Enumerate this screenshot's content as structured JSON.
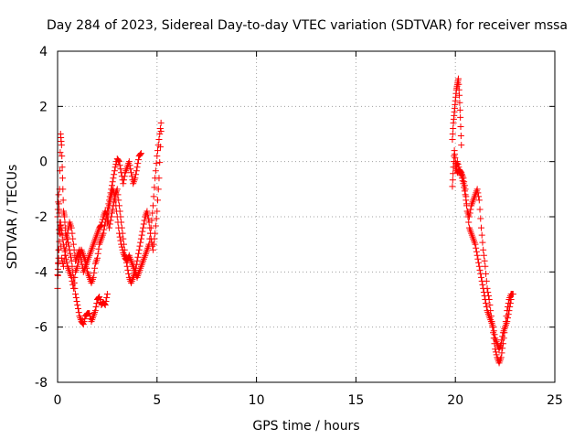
{
  "chart_data": {
    "type": "scatter",
    "title": "Day 284 of 2023, Sidereal Day-to-day VTEC variation (SDTVAR) for receiver mssa",
    "xlabel": "GPS time / hours",
    "ylabel": "SDTVAR / TECUs",
    "xlim": [
      0,
      25
    ],
    "ylim": [
      -8,
      4
    ],
    "x_ticks": [
      0,
      5,
      10,
      15,
      20,
      25
    ],
    "x_tick_labels": [
      "0",
      "5",
      "10",
      "15",
      "20",
      "25"
    ],
    "y_ticks": [
      -8,
      -6,
      -4,
      -2,
      0,
      2,
      4
    ],
    "y_tick_labels": [
      "-8",
      "-6",
      "-4",
      "-2",
      "0",
      "2",
      "4"
    ],
    "grid": true,
    "marker": "plus",
    "color": "#ff0000",
    "series": [
      {
        "name": "SDTVAR",
        "traces": [
          {
            "x": [
              0.0,
              0.05,
              0.1,
              0.15,
              0.2,
              0.25,
              0.3,
              0.35,
              0.4,
              0.5,
              0.6,
              0.7,
              0.8,
              0.9,
              1.0,
              1.1,
              1.2,
              1.3,
              1.4,
              1.5,
              1.6,
              1.7,
              1.8,
              1.9,
              2.0,
              2.1,
              2.2,
              2.3,
              2.4,
              2.5
            ],
            "y": [
              -4.6,
              -3.2,
              -1.0,
              1.0,
              0.6,
              -0.6,
              -1.8,
              -2.0,
              -2.6,
              -2.8,
              -3.2,
              -3.6,
              -4.2,
              -4.8,
              -5.2,
              -5.6,
              -5.8,
              -5.9,
              -5.6,
              -5.5,
              -5.5,
              -5.8,
              -5.6,
              -5.4,
              -5.0,
              -4.9,
              -5.2,
              -5.1,
              -5.2,
              -4.8
            ]
          },
          {
            "x": [
              0.0,
              0.05,
              0.1,
              0.15,
              0.2,
              0.3,
              0.4,
              0.5,
              0.6,
              0.7,
              0.8,
              0.9,
              1.0,
              1.1,
              1.2,
              1.3,
              1.4,
              1.5,
              1.6,
              1.7,
              1.8,
              1.9,
              2.0,
              2.1,
              2.2,
              2.3,
              2.4,
              2.5,
              2.6,
              2.7,
              2.8,
              2.9,
              3.0,
              3.1,
              3.2,
              3.3,
              3.4,
              3.5,
              3.6,
              3.7,
              3.8,
              3.9,
              4.0,
              4.1,
              4.2
            ],
            "y": [
              -4.1,
              -3.5,
              -2.6,
              -2.2,
              -2.5,
              -3.0,
              -3.4,
              -3.8,
              -4.0,
              -4.2,
              -4.6,
              -4.0,
              -3.8,
              -3.4,
              -3.2,
              -3.4,
              -3.6,
              -4.0,
              -4.2,
              -4.4,
              -4.2,
              -3.7,
              -3.5,
              -3.0,
              -2.8,
              -2.6,
              -2.2,
              -1.8,
              -1.4,
              -1.0,
              -0.6,
              -0.2,
              0.1,
              0.0,
              -0.4,
              -0.8,
              -0.4,
              -0.2,
              0.0,
              -0.4,
              -0.8,
              -0.6,
              -0.2,
              0.2,
              0.3
            ]
          },
          {
            "x": [
              0.0,
              0.05,
              0.1,
              0.2,
              0.3,
              0.4,
              0.5,
              0.6,
              0.7,
              0.8,
              0.9,
              1.0,
              1.1,
              1.2,
              1.3,
              1.4,
              1.5,
              1.6,
              1.7,
              1.8,
              1.9,
              2.0,
              2.1,
              2.2,
              2.3,
              2.4,
              2.5,
              2.6,
              2.7,
              2.8,
              2.9,
              3.0,
              3.1,
              3.2,
              3.3,
              3.4,
              3.5,
              3.6,
              3.7,
              3.8,
              3.9,
              4.0,
              4.1,
              4.2,
              4.3,
              4.4,
              4.5,
              4.6,
              4.7,
              4.8,
              4.9,
              5.0,
              5.1,
              5.2
            ],
            "y": [
              -2.0,
              -1.2,
              -2.2,
              -3.5,
              -3.8,
              -3.2,
              -2.6,
              -2.2,
              -2.4,
              -3.0,
              -3.6,
              -3.4,
              -3.2,
              -3.6,
              -4.0,
              -3.8,
              -3.6,
              -3.4,
              -3.2,
              -3.0,
              -2.8,
              -2.6,
              -2.4,
              -2.3,
              -2.0,
              -1.8,
              -2.0,
              -2.4,
              -2.0,
              -1.6,
              -1.2,
              -1.0,
              -1.6,
              -2.2,
              -2.8,
              -3.4,
              -3.8,
              -4.2,
              -4.4,
              -4.2,
              -4.0,
              -3.6,
              -3.2,
              -2.8,
              -2.4,
              -2.0,
              -1.8,
              -2.2,
              -2.8,
              -3.2,
              -2.6,
              -1.8,
              -0.6,
              1.1
            ]
          },
          {
            "x": [
              2.5,
              2.6,
              2.7,
              2.8,
              2.9,
              3.0,
              3.1,
              3.2,
              3.3,
              3.4,
              3.5,
              3.6,
              3.7,
              3.8,
              3.9,
              4.0,
              4.1,
              4.2,
              4.3,
              4.4,
              4.5,
              4.6,
              4.7,
              4.8,
              4.9,
              5.0,
              5.1,
              5.2
            ],
            "y": [
              -2.2,
              -1.6,
              -1.2,
              -1.0,
              -1.4,
              -2.0,
              -2.6,
              -3.0,
              -3.3,
              -3.5,
              -3.6,
              -3.4,
              -3.6,
              -3.8,
              -4.0,
              -4.2,
              -4.0,
              -3.8,
              -3.6,
              -3.4,
              -3.2,
              -3.0,
              -2.4,
              -1.6,
              -0.6,
              0.2,
              0.8,
              1.4
            ]
          },
          {
            "x": [
              19.85,
              19.9,
              19.95,
              20.0,
              20.05,
              20.1,
              20.15,
              20.2,
              20.25,
              20.3
            ],
            "y": [
              0.8,
              1.4,
              1.8,
              2.2,
              2.6,
              2.8,
              3.0,
              2.4,
              1.6,
              0.6
            ]
          },
          {
            "x": [
              19.85,
              19.9,
              19.95,
              20.0,
              20.05,
              20.1,
              20.2,
              20.3,
              20.4,
              20.5,
              20.6,
              20.7,
              20.8,
              20.9,
              21.0,
              21.1,
              21.2,
              21.3,
              21.4,
              21.5,
              21.6,
              21.7,
              21.8,
              21.9,
              22.0,
              22.1,
              22.2,
              22.3,
              22.4,
              22.5,
              22.6,
              22.7,
              22.8,
              22.9
            ],
            "y": [
              -0.9,
              -0.2,
              0.4,
              0.0,
              -0.2,
              0.0,
              -0.3,
              -0.5,
              -0.8,
              -1.2,
              -1.8,
              -2.0,
              -1.6,
              -1.4,
              -1.2,
              -1.0,
              -1.4,
              -2.4,
              -3.2,
              -3.8,
              -4.6,
              -5.0,
              -5.6,
              -6.2,
              -6.8,
              -7.1,
              -7.3,
              -7.1,
              -6.6,
              -6.0,
              -5.4,
              -5.0,
              -4.8,
              -4.8
            ]
          },
          {
            "x": [
              20.0,
              20.1,
              20.2,
              20.3,
              20.4,
              20.5,
              20.6,
              20.7,
              20.8,
              20.9,
              21.0,
              21.1,
              21.2,
              21.3,
              21.4,
              21.5,
              21.6,
              21.7,
              21.8,
              21.9,
              22.0,
              22.1,
              22.2,
              22.3,
              22.4,
              22.5,
              22.6,
              22.7,
              22.8
            ],
            "y": [
              -0.2,
              -0.4,
              -0.3,
              -0.4,
              -0.6,
              -1.0,
              -1.8,
              -2.4,
              -2.6,
              -2.8,
              -3.0,
              -3.4,
              -3.8,
              -4.2,
              -4.6,
              -5.0,
              -5.4,
              -5.6,
              -5.8,
              -6.0,
              -6.4,
              -6.6,
              -6.8,
              -6.6,
              -6.2,
              -6.0,
              -5.8,
              -5.4,
              -5.0
            ]
          }
        ]
      }
    ]
  }
}
